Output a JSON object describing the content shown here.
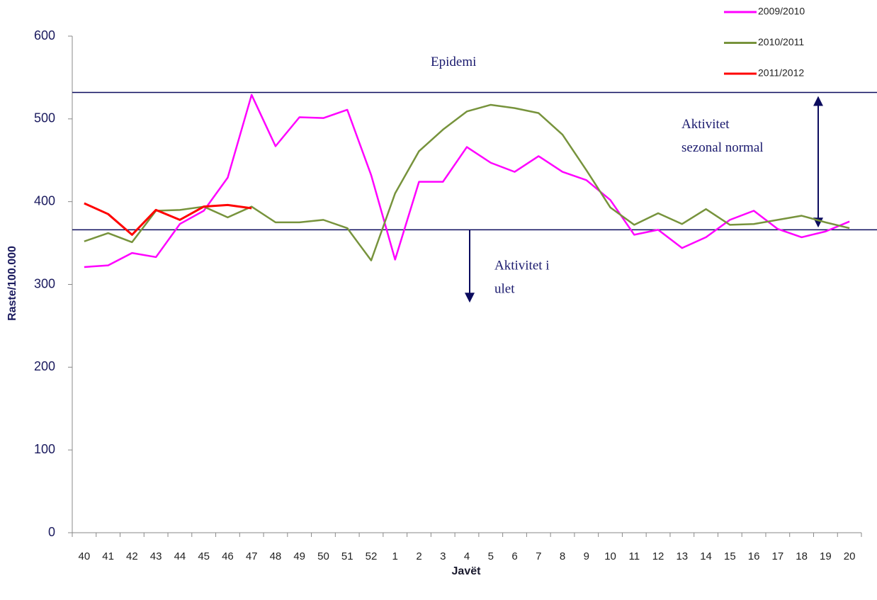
{
  "chart_data": {
    "type": "line",
    "x_label": "Javët",
    "y_label": "Raste/100.000",
    "categories": [
      "40",
      "41",
      "42",
      "43",
      "44",
      "45",
      "46",
      "47",
      "48",
      "49",
      "50",
      "51",
      "52",
      "1",
      "2",
      "3",
      "4",
      "5",
      "6",
      "7",
      "8",
      "9",
      "10",
      "11",
      "12",
      "13",
      "14",
      "15",
      "16",
      "17",
      "18",
      "19",
      "20"
    ],
    "series": [
      {
        "name": "2009/2010",
        "color": "#ff00ff",
        "values": [
          321,
          323,
          338,
          333,
          373,
          389,
          429,
          529,
          467,
          502,
          501,
          511,
          432,
          330,
          424,
          424,
          466,
          447,
          436,
          455,
          436,
          426,
          402,
          360,
          366,
          344,
          357,
          378,
          389,
          367,
          357,
          364,
          376
        ]
      },
      {
        "name": "2010/2011",
        "color": "#77933c",
        "values": [
          352,
          362,
          351,
          389,
          390,
          394,
          381,
          394,
          375,
          375,
          378,
          368,
          329,
          410,
          461,
          487,
          509,
          517,
          513,
          507,
          481,
          438,
          393,
          372,
          386,
          373,
          391,
          372,
          373,
          378,
          383,
          375,
          368
        ]
      },
      {
        "name": "2011/2012",
        "color": "#ff0000",
        "values": [
          398,
          385,
          360,
          390,
          378,
          394,
          396,
          392,
          null,
          null,
          null,
          null,
          null,
          null,
          null,
          null,
          null,
          null,
          null,
          null,
          null,
          null,
          null,
          null,
          null,
          null,
          null,
          null,
          null,
          null,
          null,
          null,
          null
        ]
      }
    ],
    "reference_lines": [
      532,
      366
    ],
    "annotations": [
      [
        "Epidemi"
      ],
      [
        "Aktivitet",
        "sezonal normal"
      ],
      [
        "Aktivitet i",
        "ulet"
      ]
    ],
    "ylim": [
      0,
      600
    ],
    "yticks": [
      0,
      100,
      200,
      300,
      400,
      500,
      600
    ],
    "legend": "top-right"
  }
}
